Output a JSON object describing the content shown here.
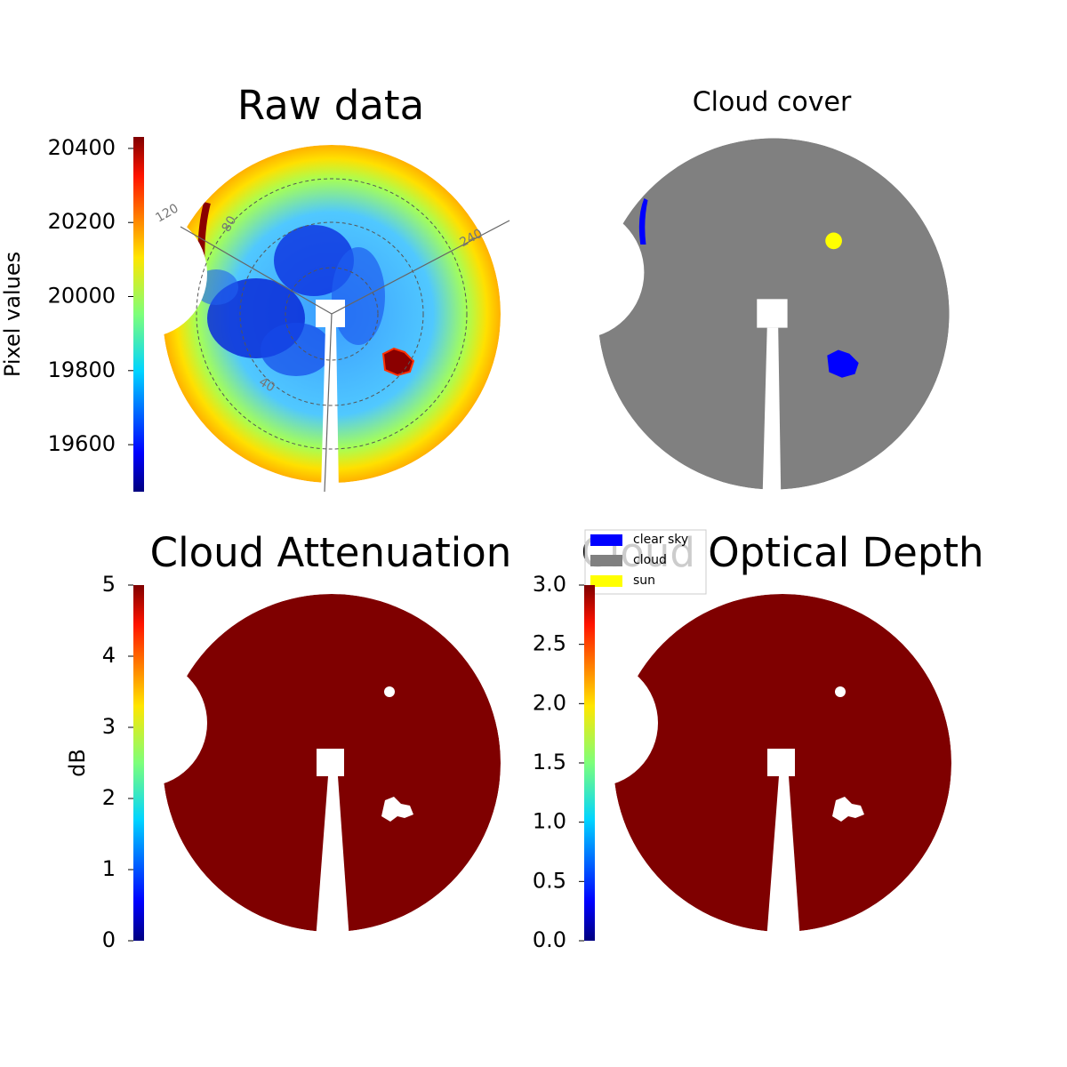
{
  "chart_data": [
    {
      "type": "sky-image",
      "title": "Raw data",
      "colorbar": {
        "label": "Pixel values",
        "ylim": [
          19473,
          20431
        ],
        "yticks": [
          19600,
          19800,
          20000,
          20200,
          20400
        ]
      },
      "annotations": [
        "120",
        "80",
        "240",
        "40"
      ]
    },
    {
      "type": "cloud-mask",
      "title": "Cloud cover",
      "legend": {
        "labels": [
          "clear sky",
          "cloud",
          "sun"
        ],
        "colors": [
          "#0000ff",
          "#808080",
          "#ffff00"
        ]
      }
    },
    {
      "type": "sky-image",
      "title": "Cloud Attenuation",
      "colorbar": {
        "label": "dB",
        "ylim": [
          0,
          5
        ],
        "yticks": [
          0,
          1,
          2,
          3,
          4,
          5
        ]
      }
    },
    {
      "type": "sky-image",
      "title": "Cloud Optical Depth",
      "colorbar": {
        "ylim": [
          0,
          3
        ],
        "yticks": [
          {
            "value": 0,
            "label": "0.0"
          },
          0.5,
          {
            "value": 1,
            "label": "1.0"
          },
          1.5,
          {
            "value": 2,
            "label": "2.0"
          },
          2.5,
          {
            "value": 3,
            "label": "3.0"
          }
        ]
      }
    }
  ]
}
